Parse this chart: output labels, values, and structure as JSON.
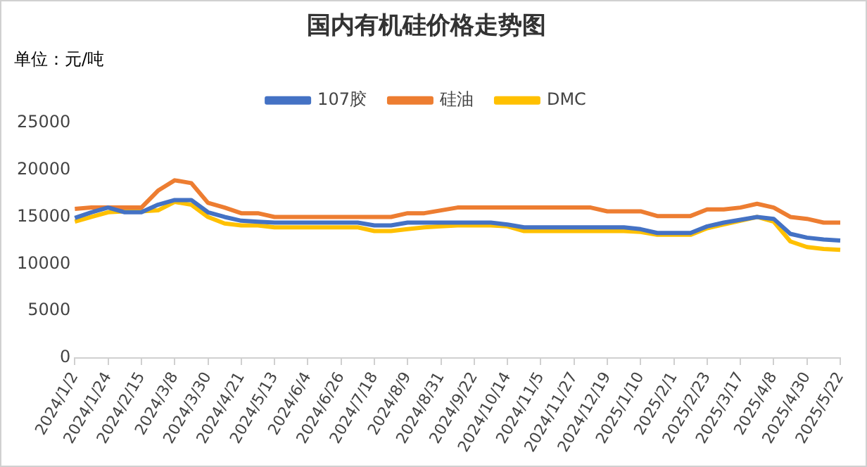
{
  "chart_data": {
    "type": "line",
    "title": "国内有机硅价格走势图",
    "annotations": [
      "单位：元/吨"
    ],
    "categories": [
      "2024/1/2",
      null,
      "2024/1/24",
      null,
      "2024/2/15",
      null,
      "2024/3/8",
      null,
      "2024/3/30",
      null,
      "2024/4/21",
      null,
      "2024/5/13",
      null,
      "2024/6/4",
      null,
      "2024/6/26",
      null,
      "2024/7/18",
      null,
      "2024/8/9",
      null,
      "2024/8/31",
      null,
      "2024/9/22",
      null,
      "2024/10/14",
      null,
      "2024/11/5",
      null,
      "2024/11/27",
      null,
      "2024/12/19",
      null,
      "2025/1/10",
      null,
      "2025/2/1",
      null,
      "2025/2/23",
      null,
      "2025/3/17",
      null,
      "2025/4/8",
      null,
      "2025/4/30",
      null,
      "2025/5/22"
    ],
    "series": [
      {
        "name": "107胶",
        "color": "#4472c4",
        "values": [
          14900,
          15500,
          16000,
          15500,
          15500,
          16300,
          16800,
          16800,
          15500,
          15000,
          14600,
          14500,
          14400,
          14400,
          14400,
          14400,
          14400,
          14400,
          14100,
          14100,
          14400,
          14400,
          14400,
          14400,
          14400,
          14400,
          14200,
          13900,
          13900,
          13900,
          13900,
          13900,
          13900,
          13900,
          13700,
          13300,
          13300,
          13300,
          14000,
          14400,
          14700,
          15000,
          14800,
          13200,
          12800,
          12600,
          12500
        ]
      },
      {
        "name": "硅油",
        "color": "#ed7d31",
        "values": [
          15850,
          16000,
          16000,
          16000,
          16000,
          17800,
          18900,
          18600,
          16500,
          16000,
          15400,
          15400,
          15000,
          15000,
          15000,
          15000,
          15000,
          15000,
          15000,
          15000,
          15400,
          15400,
          15700,
          16000,
          16000,
          16000,
          16000,
          16000,
          16000,
          16000,
          16000,
          16000,
          15600,
          15600,
          15600,
          15100,
          15100,
          15100,
          15800,
          15800,
          16000,
          16400,
          16000,
          15000,
          14800,
          14400,
          14400
        ]
      },
      {
        "name": "DMC",
        "color": "#ffc000",
        "values": [
          14500,
          15000,
          15500,
          15600,
          15600,
          15700,
          16600,
          16300,
          15000,
          14300,
          14100,
          14100,
          13900,
          13900,
          13900,
          13900,
          13900,
          13900,
          13500,
          13500,
          13700,
          13900,
          14000,
          14100,
          14100,
          14100,
          14000,
          13500,
          13500,
          13500,
          13500,
          13500,
          13500,
          13500,
          13400,
          13100,
          13100,
          13100,
          13800,
          14200,
          14600,
          15000,
          14500,
          12400,
          11800,
          11600,
          11500
        ]
      }
    ],
    "ylim": [
      0,
      25000
    ],
    "yticks": [
      0,
      5000,
      10000,
      15000,
      20000,
      25000
    ],
    "grid": false,
    "legend": "top",
    "marker": "none",
    "line_style": "solid"
  }
}
